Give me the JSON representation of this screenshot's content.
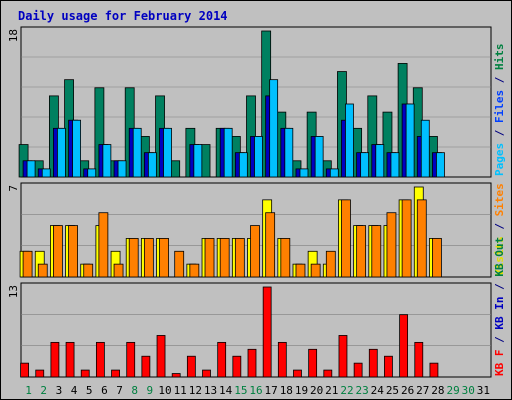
{
  "chart_data": [
    {
      "type": "bar",
      "title": "Daily usage for February 2014",
      "ymax_label": "18",
      "ylim": [
        0,
        18
      ],
      "side_label": [
        {
          "text": "Pages",
          "color": "#00c0ff"
        },
        {
          "text": " / ",
          "color": "#000080"
        },
        {
          "text": "Files",
          "color": "#0040ff"
        },
        {
          "text": " / ",
          "color": "#000080"
        },
        {
          "text": "Hits",
          "color": "#008040"
        }
      ],
      "categories": [
        "1",
        "2",
        "3",
        "4",
        "5",
        "6",
        "7",
        "8",
        "9",
        "10",
        "11",
        "12",
        "13",
        "14",
        "15",
        "16",
        "17",
        "18",
        "19",
        "20",
        "21",
        "22",
        "23",
        "24",
        "25",
        "26",
        "27",
        "28",
        "29",
        "30",
        "31"
      ],
      "series": [
        {
          "name": "Hits",
          "color": "#008060",
          "values": [
            4,
            2,
            10,
            12,
            2,
            11,
            2,
            11,
            5,
            10,
            2,
            6,
            4,
            6,
            5,
            10,
            18,
            8,
            2,
            8,
            2,
            13,
            6,
            10,
            8,
            14,
            11,
            5,
            0,
            0,
            0
          ]
        },
        {
          "name": "Files",
          "color": "#0000c0",
          "values": [
            2,
            1,
            6,
            7,
            1,
            4,
            2,
            6,
            3,
            6,
            0,
            4,
            0,
            6,
            3,
            5,
            10,
            6,
            1,
            5,
            1,
            7,
            3,
            4,
            3,
            9,
            5,
            3,
            0,
            0,
            0
          ]
        },
        {
          "name": "Pages",
          "color": "#00c0ff",
          "values": [
            2,
            1,
            6,
            7,
            1,
            4,
            2,
            6,
            3,
            6,
            0,
            4,
            0,
            6,
            3,
            5,
            12,
            6,
            1,
            5,
            1,
            9,
            3,
            4,
            3,
            9,
            7,
            3,
            0,
            0,
            0
          ]
        }
      ]
    },
    {
      "type": "bar",
      "ymax_label": "7",
      "ylim": [
        0,
        7
      ],
      "side_label": [
        {
          "text": "Visits",
          "color": "#e0e000"
        },
        {
          "text": " / ",
          "color": "#000080"
        },
        {
          "text": "Sites",
          "color": "#ff8000"
        }
      ],
      "categories": [
        "1",
        "2",
        "3",
        "4",
        "5",
        "6",
        "7",
        "8",
        "9",
        "10",
        "11",
        "12",
        "13",
        "14",
        "15",
        "16",
        "17",
        "18",
        "19",
        "20",
        "21",
        "22",
        "23",
        "24",
        "25",
        "26",
        "27",
        "28",
        "29",
        "30",
        "31"
      ],
      "series": [
        {
          "name": "Visits",
          "color": "#ffff00",
          "values": [
            2,
            2,
            4,
            4,
            1,
            4,
            2,
            3,
            3,
            3,
            0,
            1,
            3,
            3,
            3,
            3,
            6,
            3,
            1,
            2,
            1,
            6,
            4,
            4,
            4,
            6,
            7,
            3,
            0,
            0,
            0
          ]
        },
        {
          "name": "Sites",
          "color": "#ff8000",
          "values": [
            2,
            1,
            4,
            4,
            1,
            5,
            1,
            3,
            3,
            3,
            2,
            1,
            3,
            3,
            3,
            4,
            5,
            3,
            1,
            1,
            2,
            6,
            4,
            4,
            5,
            6,
            6,
            3,
            0,
            0,
            0
          ]
        }
      ]
    },
    {
      "type": "bar",
      "ymax_label": "13",
      "ylim": [
        0,
        13
      ],
      "side_label": [
        {
          "text": "KB F",
          "color": "#ff0000"
        },
        {
          "text": " / ",
          "color": "#000080"
        },
        {
          "text": "KB In",
          "color": "#0000c0"
        },
        {
          "text": " / ",
          "color": "#000080"
        },
        {
          "text": "KB Out",
          "color": "#008040"
        }
      ],
      "categories": [
        "1",
        "2",
        "3",
        "4",
        "5",
        "6",
        "7",
        "8",
        "9",
        "10",
        "11",
        "12",
        "13",
        "14",
        "15",
        "16",
        "17",
        "18",
        "19",
        "20",
        "21",
        "22",
        "23",
        "24",
        "25",
        "26",
        "27",
        "28",
        "29",
        "30",
        "31"
      ],
      "series": [
        {
          "name": "KB F",
          "color": "#ff0000",
          "values": [
            2,
            1,
            5,
            5,
            1,
            5,
            1,
            5,
            3,
            6,
            0.5,
            3,
            1,
            5,
            3,
            4,
            13,
            5,
            1,
            4,
            1,
            6,
            2,
            4,
            3,
            9,
            5,
            2,
            0,
            0,
            0
          ]
        }
      ]
    }
  ],
  "day_colors": [
    "#008040",
    "#008040",
    "#000000",
    "#000000",
    "#000000",
    "#000000",
    "#000000",
    "#008040",
    "#008040",
    "#000000",
    "#000000",
    "#000000",
    "#000000",
    "#000000",
    "#008040",
    "#008040",
    "#000000",
    "#000000",
    "#000000",
    "#000000",
    "#000000",
    "#008040",
    "#008040",
    "#000000",
    "#000000",
    "#000000",
    "#000000",
    "#000000",
    "#008040",
    "#008040",
    "#000000"
  ]
}
